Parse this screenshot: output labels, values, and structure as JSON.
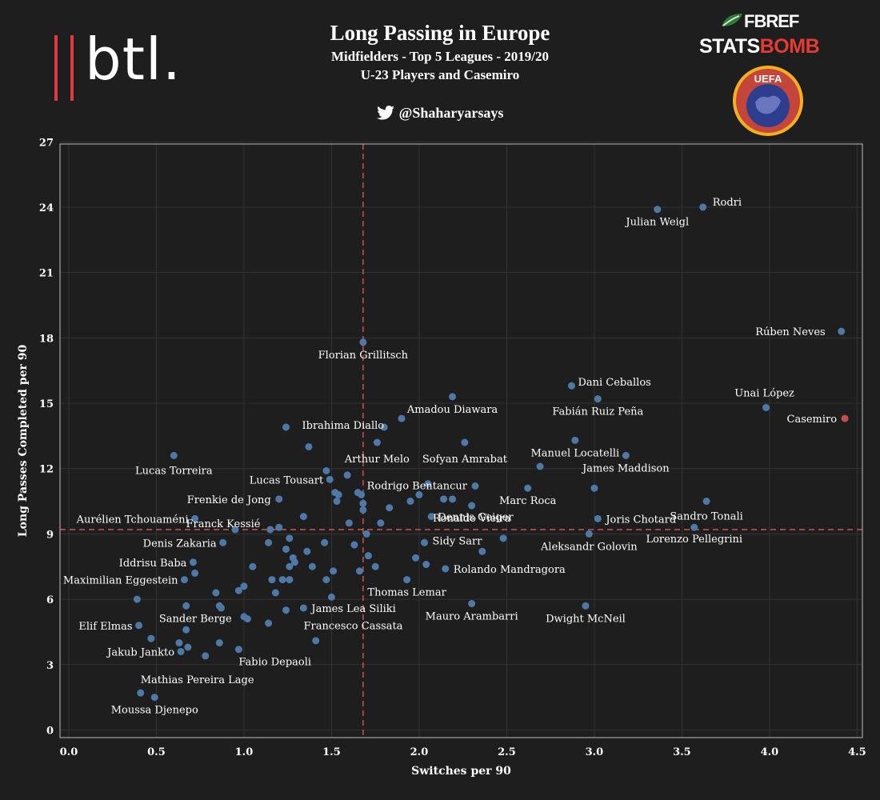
{
  "header": {
    "title": "Long Passing in Europe",
    "subtitle_1": "Midfielders - Top 5 Leagues - 2019/20",
    "subtitle_2": "U-23 Players and Casemiro",
    "handle": "@Shaharyarsays",
    "logos": {
      "btl": "btl.",
      "fbref": "FBREF",
      "statsbomb_a": "STATS",
      "statsbomb_b": "BOMB",
      "uefa": "UEFA"
    }
  },
  "colors": {
    "background": "#1e1e1e",
    "point": "#4e79a7",
    "highlight": "#c0504d",
    "reference_line": "#c0504d",
    "grid": "#333333",
    "frame": "#bdbdbd"
  },
  "icons": [
    "twitter-bird-icon",
    "uefa-ball-icon"
  ],
  "chart_data": {
    "type": "scatter",
    "xlabel": "Switches per 90",
    "ylabel": "Long Passes Completed per 90",
    "xlim": [
      -0.05,
      4.53
    ],
    "ylim": [
      -0.35,
      26.9
    ],
    "x_ticks": [
      0.0,
      0.5,
      1.0,
      1.5,
      2.0,
      2.5,
      3.0,
      3.5,
      4.0,
      4.5
    ],
    "x_tick_labels": [
      "0.0",
      "0.5",
      "1.0",
      "1.5",
      "2.0",
      "2.5",
      "3.0",
      "3.5",
      "4.0",
      "4.5"
    ],
    "y_ticks": [
      0,
      3,
      6,
      9,
      12,
      15,
      18,
      21,
      24,
      27
    ],
    "y_tick_labels": [
      "0",
      "3",
      "6",
      "9",
      "12",
      "15",
      "18",
      "21",
      "24",
      "27"
    ],
    "grid": true,
    "reference_lines": {
      "x": 1.68,
      "y": 9.2
    },
    "labeled_points": [
      {
        "name": "Rodri",
        "x": 3.62,
        "y": 24.0
      },
      {
        "name": "Julian Weigl",
        "x": 3.36,
        "y": 23.9
      },
      {
        "name": "Rúben Neves",
        "x": 4.41,
        "y": 18.3
      },
      {
        "name": "Florian Grillitsch",
        "x": 1.68,
        "y": 17.8
      },
      {
        "name": "Dani Ceballos",
        "x": 2.87,
        "y": 15.8
      },
      {
        "name": "Unai López",
        "x": 3.98,
        "y": 14.8
      },
      {
        "name": "Fabián Ruiz Peña",
        "x": 3.02,
        "y": 15.2
      },
      {
        "name": "Amadou Diawara",
        "x": 2.19,
        "y": 15.3
      },
      {
        "name": "Casemiro",
        "x": 4.43,
        "y": 14.3,
        "highlight": true
      },
      {
        "name": "Ibrahima Diallo",
        "x": 1.24,
        "y": 13.9
      },
      {
        "name": "Arthur Melo",
        "x": 1.76,
        "y": 13.2
      },
      {
        "name": "Sofyan Amrabat",
        "x": 2.26,
        "y": 13.2
      },
      {
        "name": "Manuel Locatelli",
        "x": 2.89,
        "y": 13.3
      },
      {
        "name": "James Maddison",
        "x": 3.18,
        "y": 12.6
      },
      {
        "name": "Lucas Torreira",
        "x": 0.6,
        "y": 12.6
      },
      {
        "name": "Rodrigo Bentancur",
        "x": 2.32,
        "y": 11.2
      },
      {
        "name": "Marc Roca",
        "x": 2.62,
        "y": 11.1
      },
      {
        "name": "Lucas Tousart",
        "x": 1.49,
        "y": 11.5
      },
      {
        "name": "Frenkie de Jong",
        "x": 1.2,
        "y": 10.6
      },
      {
        "name": "Ronaldo Vieira",
        "x": 2.3,
        "y": 10.3
      },
      {
        "name": "Sandro Tonali",
        "x": 3.64,
        "y": 10.5
      },
      {
        "name": "Aurélien Tchouaméni",
        "x": 0.72,
        "y": 9.7
      },
      {
        "name": "Franck Kessié",
        "x": 0.95,
        "y": 9.2
      },
      {
        "name": "Dennis Geiger",
        "x": 2.07,
        "y": 9.8
      },
      {
        "name": "Joris Chotard",
        "x": 3.02,
        "y": 9.7
      },
      {
        "name": "Lorenzo Pellegrini",
        "x": 3.57,
        "y": 9.3
      },
      {
        "name": "Denis Zakaria",
        "x": 0.88,
        "y": 8.6
      },
      {
        "name": "Sidy Sarr",
        "x": 2.03,
        "y": 8.6
      },
      {
        "name": "Aleksandr Golovin",
        "x": 2.97,
        "y": 9.0
      },
      {
        "name": "Iddrisu Baba",
        "x": 0.71,
        "y": 7.7
      },
      {
        "name": "Rolando Mandragora",
        "x": 2.15,
        "y": 7.4
      },
      {
        "name": "Maximilian Eggestein",
        "x": 0.66,
        "y": 6.9
      },
      {
        "name": "Thomas Lemar",
        "x": 1.93,
        "y": 6.9
      },
      {
        "name": "James Lea Siliki",
        "x": 1.34,
        "y": 5.6
      },
      {
        "name": "Mauro Arambarri",
        "x": 2.3,
        "y": 5.8
      },
      {
        "name": "Dwight McNeil",
        "x": 2.95,
        "y": 5.7
      },
      {
        "name": "Sander Berge",
        "x": 0.86,
        "y": 5.7
      },
      {
        "name": "Elif Elmas",
        "x": 0.4,
        "y": 4.8
      },
      {
        "name": "Francesco Cassata",
        "x": 1.24,
        "y": 5.5
      },
      {
        "name": "Jakub Jankto",
        "x": 0.64,
        "y": 3.6
      },
      {
        "name": "Fabio Depaoli",
        "x": 0.97,
        "y": 3.7
      },
      {
        "name": "Mathias Pereira Lage",
        "x": 0.41,
        "y": 1.7
      },
      {
        "name": "Moussa Djenepo",
        "x": 0.49,
        "y": 1.5
      }
    ],
    "other_points": [
      [
        1.37,
        13.0
      ],
      [
        1.47,
        11.9
      ],
      [
        1.8,
        13.9
      ],
      [
        1.9,
        14.3
      ],
      [
        1.59,
        11.7
      ],
      [
        1.65,
        10.9
      ],
      [
        1.52,
        10.9
      ],
      [
        1.53,
        10.5
      ],
      [
        1.54,
        10.8
      ],
      [
        1.67,
        10.8
      ],
      [
        1.68,
        10.1
      ],
      [
        1.68,
        10.4
      ],
      [
        1.83,
        10.2
      ],
      [
        1.95,
        10.5
      ],
      [
        2.0,
        10.8
      ],
      [
        2.05,
        11.3
      ],
      [
        2.14,
        10.6
      ],
      [
        2.19,
        10.6
      ],
      [
        3.0,
        11.1
      ],
      [
        2.69,
        12.1
      ],
      [
        1.34,
        9.8
      ],
      [
        1.6,
        9.5
      ],
      [
        1.78,
        9.5
      ],
      [
        1.2,
        9.3
      ],
      [
        1.15,
        9.2
      ],
      [
        1.7,
        9.0
      ],
      [
        1.26,
        8.8
      ],
      [
        1.14,
        8.6
      ],
      [
        1.46,
        8.6
      ],
      [
        1.63,
        8.5
      ],
      [
        1.24,
        8.3
      ],
      [
        1.36,
        8.2
      ],
      [
        1.28,
        7.9
      ],
      [
        1.29,
        7.7
      ],
      [
        1.26,
        7.5
      ],
      [
        1.05,
        7.5
      ],
      [
        1.39,
        7.5
      ],
      [
        1.75,
        7.5
      ],
      [
        1.71,
        8.0
      ],
      [
        1.98,
        7.9
      ],
      [
        2.04,
        7.6
      ],
      [
        2.36,
        8.2
      ],
      [
        2.48,
        8.8
      ],
      [
        0.72,
        7.2
      ],
      [
        1.51,
        7.3
      ],
      [
        1.66,
        7.3
      ],
      [
        1.47,
        6.9
      ],
      [
        1.16,
        6.9
      ],
      [
        1.22,
        6.9
      ],
      [
        1.26,
        6.9
      ],
      [
        0.97,
        6.4
      ],
      [
        1.0,
        6.6
      ],
      [
        1.18,
        6.3
      ],
      [
        0.84,
        6.3
      ],
      [
        0.39,
        6.0
      ],
      [
        1.5,
        6.1
      ],
      [
        0.67,
        5.7
      ],
      [
        0.87,
        5.6
      ],
      [
        1.0,
        5.2
      ],
      [
        1.02,
        5.1
      ],
      [
        1.14,
        4.9
      ],
      [
        0.67,
        4.6
      ],
      [
        0.47,
        4.2
      ],
      [
        0.63,
        4.0
      ],
      [
        0.86,
        4.0
      ],
      [
        1.41,
        4.1
      ],
      [
        0.68,
        3.8
      ],
      [
        0.78,
        3.4
      ]
    ]
  }
}
